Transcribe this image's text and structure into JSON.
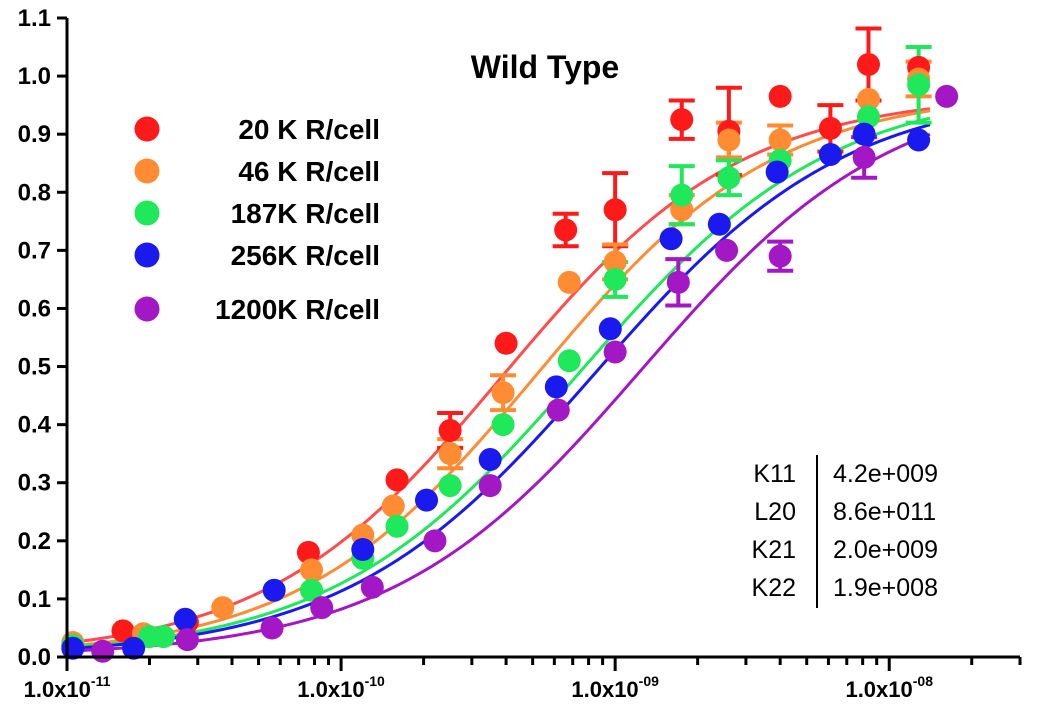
{
  "chart_data": {
    "type": "scatter",
    "title": "Wild Type",
    "xlabel": "",
    "ylabel": "",
    "xscale": "log",
    "xlim": [
      1e-11,
      3e-08
    ],
    "ylim": [
      0,
      1.1
    ],
    "grid": false,
    "legend_position": "top-left",
    "x_ticks": [
      {
        "value": 1e-11,
        "mantissa": "1.0x10",
        "exponent": "-11"
      },
      {
        "value": 1e-10,
        "mantissa": "1.0x10",
        "exponent": "-10"
      },
      {
        "value": 1e-09,
        "mantissa": "1.0x10",
        "exponent": "-09"
      },
      {
        "value": 1e-08,
        "mantissa": "1.0x10",
        "exponent": "-08"
      }
    ],
    "y_ticks": [
      {
        "value": 0.0,
        "label": "0.0"
      },
      {
        "value": 0.1,
        "label": "0.1"
      },
      {
        "value": 0.2,
        "label": "0.2"
      },
      {
        "value": 0.3,
        "label": "0.3"
      },
      {
        "value": 0.4,
        "label": "0.4"
      },
      {
        "value": 0.5,
        "label": "0.5"
      },
      {
        "value": 0.6,
        "label": "0.6"
      },
      {
        "value": 0.7,
        "label": "0.7"
      },
      {
        "value": 0.8,
        "label": "0.8"
      },
      {
        "value": 0.9,
        "label": "0.9"
      },
      {
        "value": 1.0,
        "label": "1.0"
      },
      {
        "value": 1.1,
        "label": "1.1"
      }
    ],
    "series": [
      {
        "name": "20 K R/cell",
        "color": "#ff1a1a",
        "fit_color": "#ff4d4d",
        "fit_ec50": 3.9e-10,
        "fit_hill": 1.0,
        "fit_top": 0.97,
        "points": [
          {
            "x": 1.05e-11,
            "y": 0.02
          },
          {
            "x": 1.6e-11,
            "y": 0.045
          },
          {
            "x": 2.75e-11,
            "y": 0.06
          },
          {
            "x": 7.6e-11,
            "y": 0.18
          },
          {
            "x": 1.6e-10,
            "y": 0.305
          },
          {
            "x": 2.5e-10,
            "y": 0.39,
            "err": 0.03
          },
          {
            "x": 4e-10,
            "y": 0.54
          },
          {
            "x": 6.6e-10,
            "y": 0.735,
            "err": 0.028
          },
          {
            "x": 1e-09,
            "y": 0.77,
            "err": 0.063
          },
          {
            "x": 1.75e-09,
            "y": 0.925,
            "err": 0.033
          },
          {
            "x": 2.6e-09,
            "y": 0.905,
            "err": 0.075
          },
          {
            "x": 4e-09,
            "y": 0.965
          },
          {
            "x": 6.1e-09,
            "y": 0.91,
            "err": 0.04
          },
          {
            "x": 8.4e-09,
            "y": 1.02,
            "err": 0.062
          },
          {
            "x": 1.28e-08,
            "y": 1.015
          }
        ]
      },
      {
        "name": "46 K R/cell",
        "color": "#ff8c33",
        "fit_color": "#ff8c33",
        "fit_ec50": 5.2e-10,
        "fit_hill": 1.0,
        "fit_top": 0.975,
        "points": [
          {
            "x": 1.05e-11,
            "y": 0.025
          },
          {
            "x": 1.9e-11,
            "y": 0.04
          },
          {
            "x": 3.7e-11,
            "y": 0.085
          },
          {
            "x": 7.8e-11,
            "y": 0.15
          },
          {
            "x": 1.2e-10,
            "y": 0.21
          },
          {
            "x": 1.55e-10,
            "y": 0.26
          },
          {
            "x": 2.5e-10,
            "y": 0.35,
            "err": 0.025
          },
          {
            "x": 3.9e-10,
            "y": 0.455,
            "err": 0.03
          },
          {
            "x": 6.8e-10,
            "y": 0.645
          },
          {
            "x": 1e-09,
            "y": 0.68,
            "err": 0.03
          },
          {
            "x": 1.75e-09,
            "y": 0.77,
            "err": 0.025
          },
          {
            "x": 2.6e-09,
            "y": 0.89,
            "err": 0.03
          },
          {
            "x": 4e-09,
            "y": 0.89,
            "err": 0.025
          },
          {
            "x": 8.4e-09,
            "y": 0.96
          },
          {
            "x": 1.28e-08,
            "y": 0.995,
            "err": 0.03
          }
        ]
      },
      {
        "name": "187K R/cell",
        "color": "#1fe85a",
        "fit_color": "#1fe85a",
        "fit_ec50": 7.5e-10,
        "fit_hill": 0.95,
        "fit_top": 0.985,
        "points": [
          {
            "x": 1.05e-11,
            "y": 0.02
          },
          {
            "x": 2e-11,
            "y": 0.035
          },
          {
            "x": 2.25e-11,
            "y": 0.035
          },
          {
            "x": 7.8e-11,
            "y": 0.115
          },
          {
            "x": 1.2e-10,
            "y": 0.17
          },
          {
            "x": 1.6e-10,
            "y": 0.225
          },
          {
            "x": 2.5e-10,
            "y": 0.295
          },
          {
            "x": 3.9e-10,
            "y": 0.4
          },
          {
            "x": 6.8e-10,
            "y": 0.51
          },
          {
            "x": 1e-09,
            "y": 0.65,
            "err": 0.03
          },
          {
            "x": 1.75e-09,
            "y": 0.795,
            "err": 0.05
          },
          {
            "x": 2.6e-09,
            "y": 0.825,
            "err": 0.03
          },
          {
            "x": 4e-09,
            "y": 0.855
          },
          {
            "x": 8.4e-09,
            "y": 0.93
          },
          {
            "x": 1.28e-08,
            "y": 0.985,
            "err": 0.065
          }
        ]
      },
      {
        "name": "256K R/cell",
        "color": "#1a1aee",
        "fit_color": "#1a1aee",
        "fit_ec50": 8.5e-10,
        "fit_hill": 0.95,
        "fit_top": 0.98,
        "points": [
          {
            "x": 1.05e-11,
            "y": 0.015
          },
          {
            "x": 1.75e-11,
            "y": 0.015
          },
          {
            "x": 2.7e-11,
            "y": 0.065
          },
          {
            "x": 5.7e-11,
            "y": 0.115
          },
          {
            "x": 1.2e-10,
            "y": 0.185
          },
          {
            "x": 2.05e-10,
            "y": 0.27
          },
          {
            "x": 3.5e-10,
            "y": 0.34
          },
          {
            "x": 6.1e-10,
            "y": 0.465
          },
          {
            "x": 9.6e-10,
            "y": 0.565
          },
          {
            "x": 1.6e-09,
            "y": 0.72
          },
          {
            "x": 2.4e-09,
            "y": 0.745
          },
          {
            "x": 3.9e-09,
            "y": 0.835
          },
          {
            "x": 6.1e-09,
            "y": 0.865
          },
          {
            "x": 8.1e-09,
            "y": 0.9
          },
          {
            "x": 1.28e-08,
            "y": 0.89
          }
        ]
      },
      {
        "name": "1200K R/cell",
        "color": "#a318c4",
        "fit_color": "#a318c4",
        "fit_ec50": 1.25e-09,
        "fit_hill": 0.95,
        "fit_top": 0.99,
        "points": [
          {
            "x": 1.35e-11,
            "y": 0.01
          },
          {
            "x": 2.75e-11,
            "y": 0.03
          },
          {
            "x": 5.6e-11,
            "y": 0.05
          },
          {
            "x": 8.5e-11,
            "y": 0.085
          },
          {
            "x": 1.3e-10,
            "y": 0.12
          },
          {
            "x": 2.2e-10,
            "y": 0.2
          },
          {
            "x": 3.5e-10,
            "y": 0.295
          },
          {
            "x": 6.2e-10,
            "y": 0.425
          },
          {
            "x": 1e-09,
            "y": 0.525
          },
          {
            "x": 1.7e-09,
            "y": 0.645,
            "err": 0.04
          },
          {
            "x": 2.55e-09,
            "y": 0.7
          },
          {
            "x": 4e-09,
            "y": 0.69,
            "err": 0.025
          },
          {
            "x": 8.1e-09,
            "y": 0.86,
            "err": 0.035
          },
          {
            "x": 1.62e-08,
            "y": 0.965
          }
        ]
      }
    ],
    "annotations": {
      "parameters": [
        {
          "name": "K11",
          "value": "4.2e+009"
        },
        {
          "name": "L20",
          "value": "8.6e+011"
        },
        {
          "name": "K21",
          "value": "2.0e+009"
        },
        {
          "name": "K22",
          "value": "1.9e+008"
        }
      ]
    }
  }
}
